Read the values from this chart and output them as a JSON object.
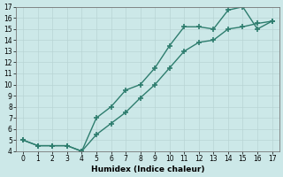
{
  "line1_x": [
    0,
    1,
    2,
    3,
    4,
    5,
    6,
    7,
    8,
    9,
    10,
    11,
    12,
    13,
    14,
    15,
    16,
    17
  ],
  "line1_y": [
    5.0,
    4.5,
    4.5,
    4.5,
    4.0,
    7.0,
    8.0,
    9.5,
    10.0,
    11.5,
    13.5,
    15.2,
    15.2,
    15.0,
    16.7,
    17.0,
    15.0,
    15.7
  ],
  "line2_x": [
    0,
    1,
    2,
    3,
    4,
    5,
    6,
    7,
    8,
    9,
    10,
    11,
    12,
    13,
    14,
    15,
    16,
    17
  ],
  "line2_y": [
    5.0,
    4.5,
    4.5,
    4.5,
    4.0,
    5.5,
    6.5,
    7.5,
    8.8,
    10.0,
    11.5,
    13.0,
    13.8,
    14.0,
    15.0,
    15.2,
    15.5,
    15.7
  ],
  "line_color": "#2e7d6e",
  "marker": "+",
  "marker_size": 5,
  "marker_lw": 1.2,
  "line_width": 1.0,
  "xlabel": "Humidex (Indice chaleur)",
  "xlim": [
    -0.5,
    17.5
  ],
  "ylim": [
    4,
    17
  ],
  "xticks": [
    0,
    1,
    2,
    3,
    4,
    5,
    6,
    7,
    8,
    9,
    10,
    11,
    12,
    13,
    14,
    15,
    16,
    17
  ],
  "yticks": [
    4,
    5,
    6,
    7,
    8,
    9,
    10,
    11,
    12,
    13,
    14,
    15,
    16,
    17
  ],
  "bg_color": "#cce8e8",
  "grid_color": "#b8d4d4",
  "tick_fontsize": 5.5,
  "xlabel_fontsize": 6.5
}
